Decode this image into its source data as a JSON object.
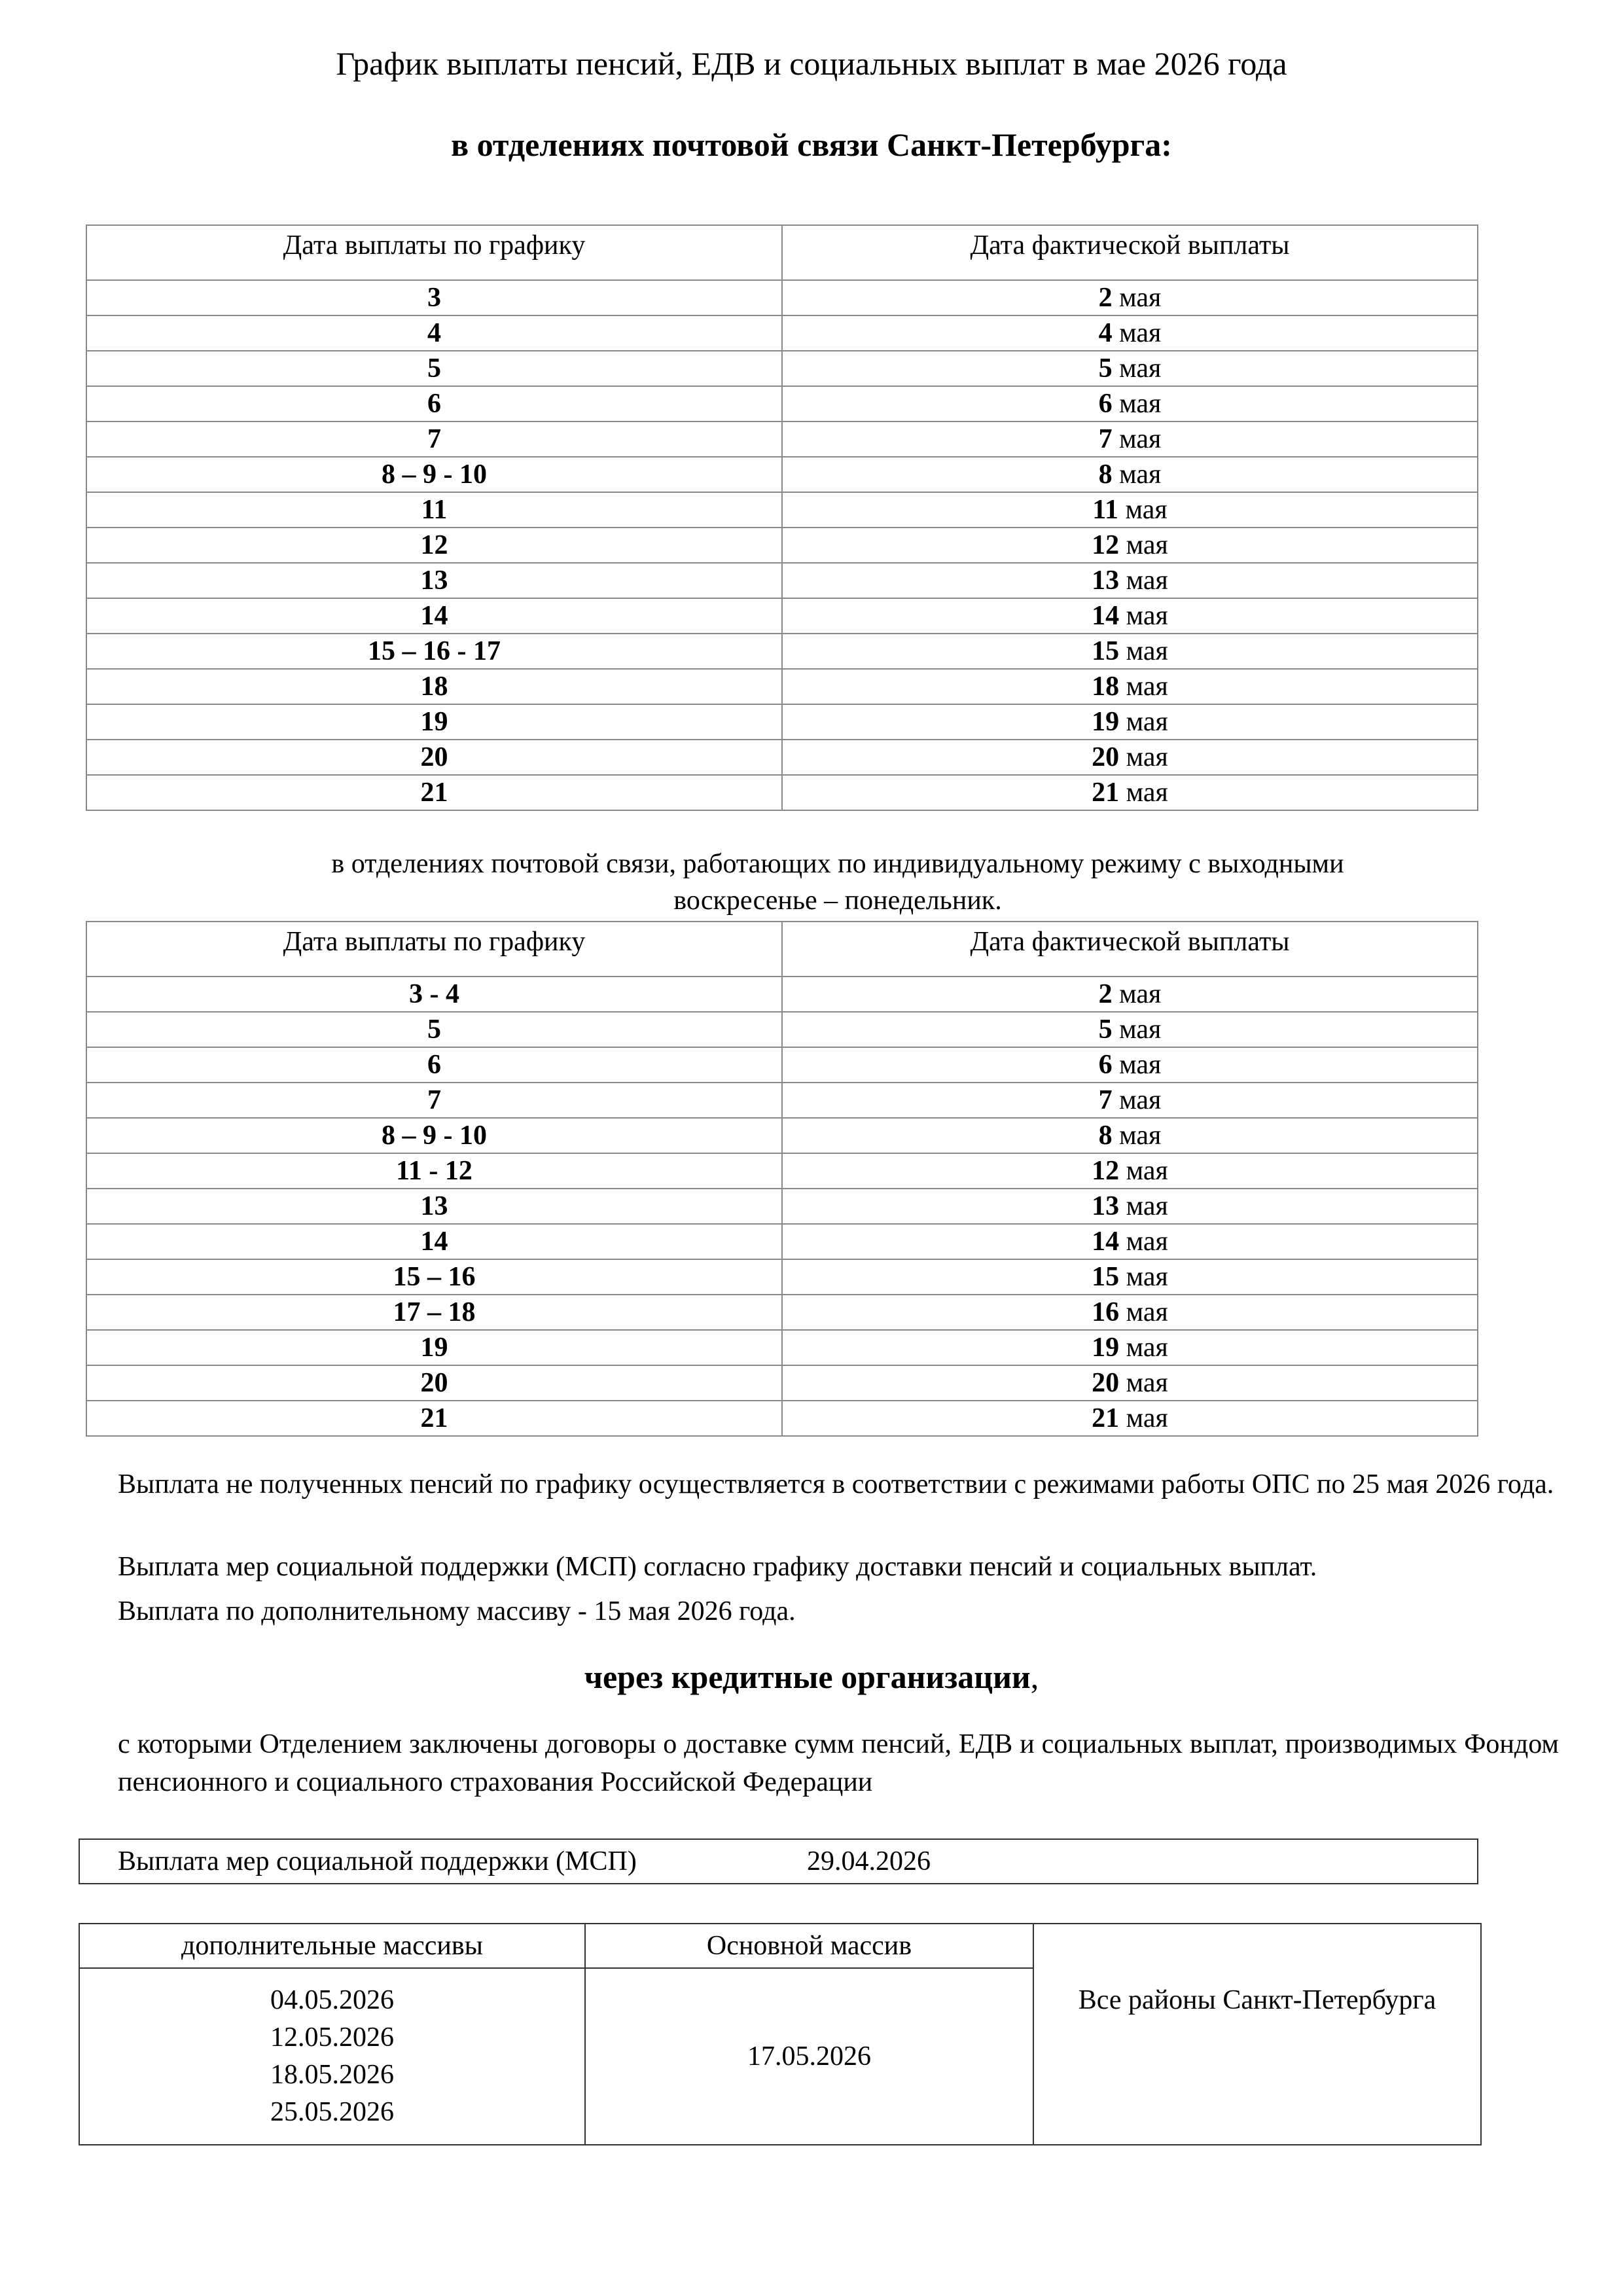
{
  "title": "График выплаты пенсий, ЕДВ и социальных выплат в мае 2026 года",
  "subtitle": "в отделениях почтовой связи Санкт-Петербурга:",
  "table1": {
    "headers": [
      "Дата выплаты по графику",
      "Дата фактической выплаты"
    ],
    "rows": [
      [
        "3",
        "2",
        "мая"
      ],
      [
        "4",
        "4",
        "мая"
      ],
      [
        "5",
        "5",
        "мая"
      ],
      [
        "6",
        "6",
        "мая"
      ],
      [
        "7",
        "7",
        "мая"
      ],
      [
        "8 – 9 - 10",
        "8",
        "мая"
      ],
      [
        "11",
        "11",
        "мая"
      ],
      [
        "12",
        "12",
        "мая"
      ],
      [
        "13",
        "13",
        "мая"
      ],
      [
        "14",
        "14",
        "мая"
      ],
      [
        "15 – 16 - 17",
        "15",
        "мая"
      ],
      [
        "18",
        "18",
        "мая"
      ],
      [
        "19",
        "19",
        "мая"
      ],
      [
        "20",
        "20",
        "мая"
      ],
      [
        "21",
        "21",
        "мая"
      ]
    ]
  },
  "note_individual": [
    "в отделениях почтовой связи, работающих по индивидуальному режиму с выходными",
    "воскресенье – понедельник."
  ],
  "table2": {
    "headers": [
      "Дата выплаты по графику",
      "Дата фактической выплаты"
    ],
    "rows": [
      [
        "3 - 4",
        "2",
        "мая"
      ],
      [
        "5",
        "5",
        "мая"
      ],
      [
        "6",
        "6",
        "мая"
      ],
      [
        "7",
        "7",
        "мая"
      ],
      [
        "8 – 9 - 10",
        "8",
        "мая"
      ],
      [
        "11 - 12",
        "12",
        "мая"
      ],
      [
        "13",
        "13",
        "мая"
      ],
      [
        "14",
        "14",
        "мая"
      ],
      [
        "15 – 16",
        "15",
        "мая"
      ],
      [
        "17 – 18",
        "16",
        "мая"
      ],
      [
        "19",
        "19",
        "мая"
      ],
      [
        "20",
        "20",
        "мая"
      ],
      [
        "21",
        "21",
        "мая"
      ]
    ]
  },
  "paragraphs": [
    "Выплата не полученных пенсий по графику осуществляется в соответствии с режимами работы ОПС по 25 мая 2026 года.",
    "Выплата мер социальной поддержки (МСП) согласно графику доставки пенсий и социальных выплат.",
    "Выплата по дополнительному массиву - 15 мая 2026 года."
  ],
  "credit_heading": "через кредитные организации",
  "credit_heading_suffix": ",",
  "credit_text": "с которыми Отделением заключены договоры о доставке сумм пенсий, ЕДВ  и социальных выплат, производимых Фондом пенсионного и социального страхования Российской Федерации",
  "msp": {
    "label": "Выплата мер социальной поддержки (МСП)",
    "date": "29.04.2026"
  },
  "bank_table": {
    "headers": [
      "дополнительные массивы",
      "Основной массив"
    ],
    "additional_dates": [
      "04.05.2026",
      "12.05.2026",
      "18.05.2026",
      "25.05.2026"
    ],
    "main_date": "17.05.2026",
    "region": "Все районы Санкт-Петербурга"
  }
}
